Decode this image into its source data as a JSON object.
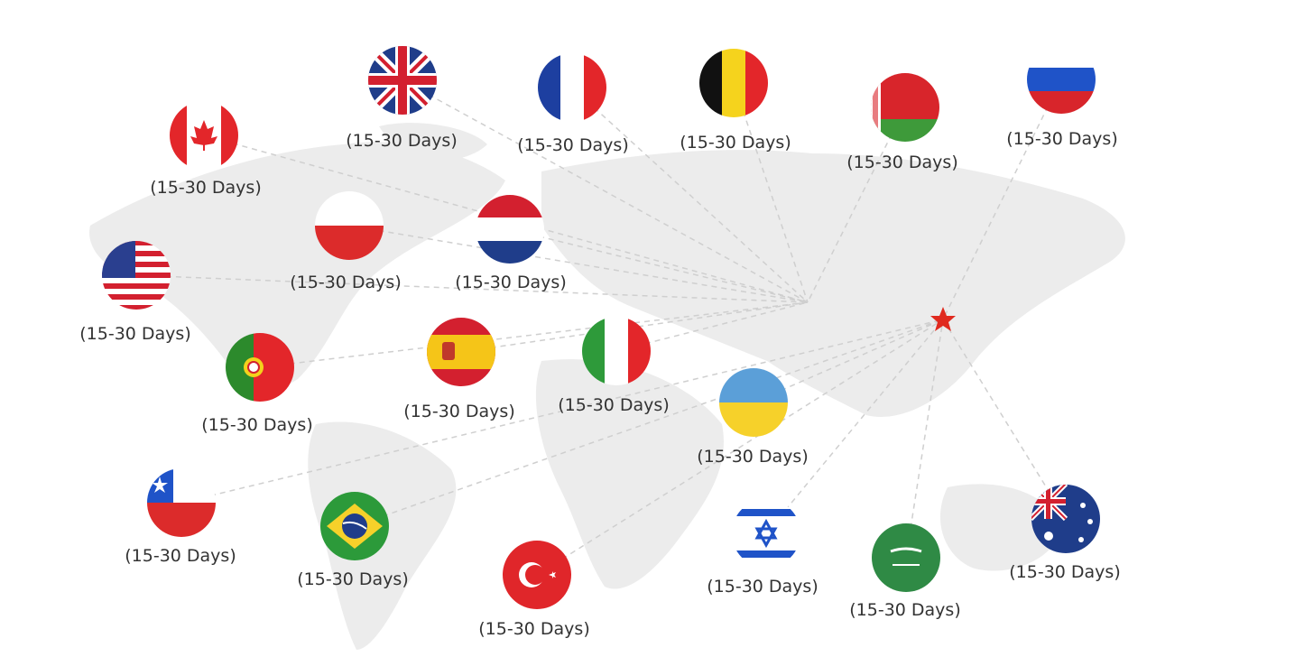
{
  "hub": {
    "icon": "star-icon",
    "color": "#e02a1f"
  },
  "destinations": [
    {
      "country": "united-kingdom",
      "label": "(15-30 Days)"
    },
    {
      "country": "france",
      "label": "(15-30 Days)"
    },
    {
      "country": "belgium",
      "label": "(15-30 Days)"
    },
    {
      "country": "belarus",
      "label": "(15-30 Days)"
    },
    {
      "country": "russia",
      "label": "(15-30 Days)"
    },
    {
      "country": "canada",
      "label": "(15-30 Days)"
    },
    {
      "country": "poland",
      "label": "(15-30 Days)"
    },
    {
      "country": "netherlands",
      "label": "(15-30 Days)"
    },
    {
      "country": "united-states",
      "label": "(15-30 Days)"
    },
    {
      "country": "portugal",
      "label": "(15-30 Days)"
    },
    {
      "country": "spain",
      "label": "(15-30 Days)"
    },
    {
      "country": "italy",
      "label": "(15-30 Days)"
    },
    {
      "country": "ukraine",
      "label": "(15-30 Days)"
    },
    {
      "country": "chile",
      "label": "(15-30 Days)"
    },
    {
      "country": "brazil",
      "label": "(15-30 Days)"
    },
    {
      "country": "turkey",
      "label": "(15-30 Days)"
    },
    {
      "country": "israel",
      "label": "(15-30 Days)"
    },
    {
      "country": "saudi-arabia",
      "label": "(15-30 Days)"
    },
    {
      "country": "australia",
      "label": "(15-30 Days)"
    }
  ]
}
